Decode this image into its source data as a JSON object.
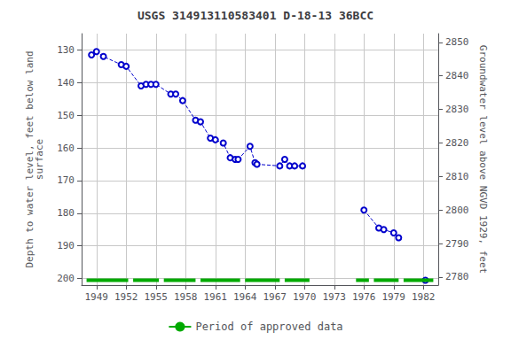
{
  "chart_data": {
    "type": "line",
    "title": "USGS 314913110583401 D-18-13 36BCC",
    "y_label": "Depth to water level, feet below land\nsurface",
    "y2_label": "Groundwater level above NGVD 1929, feet",
    "xlim": [
      1947.5,
      1983.5
    ],
    "xticks": [
      1949,
      1952,
      1955,
      1958,
      1961,
      1964,
      1967,
      1970,
      1973,
      1976,
      1979,
      1982
    ],
    "ylim": [
      202,
      125
    ],
    "yticks": [
      130,
      140,
      150,
      160,
      170,
      180,
      190,
      200
    ],
    "y2lim": [
      2777.6,
      2852.6
    ],
    "y2ticks": [
      2780,
      2790,
      2800,
      2810,
      2820,
      2830,
      2840,
      2850
    ],
    "grid": true,
    "legend": "bottom",
    "series": [
      {
        "type": "line",
        "color": "#0000cc",
        "marker": "circle",
        "line_style": "dashed",
        "x": [
          1948.5,
          1949.0,
          1949.7,
          1951.5,
          1952.0,
          1953.5,
          1954.0,
          1954.5,
          1955.0,
          1956.5,
          1957.0,
          1957.7,
          1959.0,
          1959.5,
          1960.5,
          1961.0,
          1961.8,
          1962.5,
          1963.0,
          1963.3,
          1964.5,
          1965.0,
          1965.2,
          1967.5,
          1968.0,
          1968.5,
          1969.0,
          1969.8
        ],
        "values": [
          131.5,
          130.5,
          132.0,
          134.5,
          135.0,
          141.0,
          140.5,
          140.5,
          140.5,
          143.5,
          143.5,
          145.5,
          151.5,
          152.0,
          157.0,
          157.5,
          158.5,
          163.0,
          163.5,
          163.5,
          159.5,
          164.5,
          165.0,
          165.5,
          163.5,
          165.5,
          165.5,
          165.5
        ]
      },
      {
        "type": "line",
        "color": "#0000cc",
        "marker": "circle",
        "line_style": "dashed",
        "x": [
          1976.0,
          1977.5,
          1978.0,
          1979.0,
          1979.5
        ],
        "values": [
          179.0,
          184.5,
          185.0,
          186.0,
          187.5
        ]
      },
      {
        "type": "line",
        "color": "#0000cc",
        "marker": "circle",
        "line_style": "dashed",
        "x": [
          1982.2
        ],
        "values": [
          200.5
        ]
      },
      {
        "type": "range",
        "name": "Period of approved data",
        "color": "#00aa00",
        "line_style": "solid",
        "y": 200.5,
        "ranges": [
          [
            1948.0,
            1952.2
          ],
          [
            1952.7,
            1955.3
          ],
          [
            1955.8,
            1959.0
          ],
          [
            1959.5,
            1963.5
          ],
          [
            1964.0,
            1967.5
          ],
          [
            1968.0,
            1970.5
          ],
          [
            1975.2,
            1976.5
          ],
          [
            1977.0,
            1979.5
          ],
          [
            1980.0,
            1983.0
          ]
        ]
      }
    ]
  }
}
